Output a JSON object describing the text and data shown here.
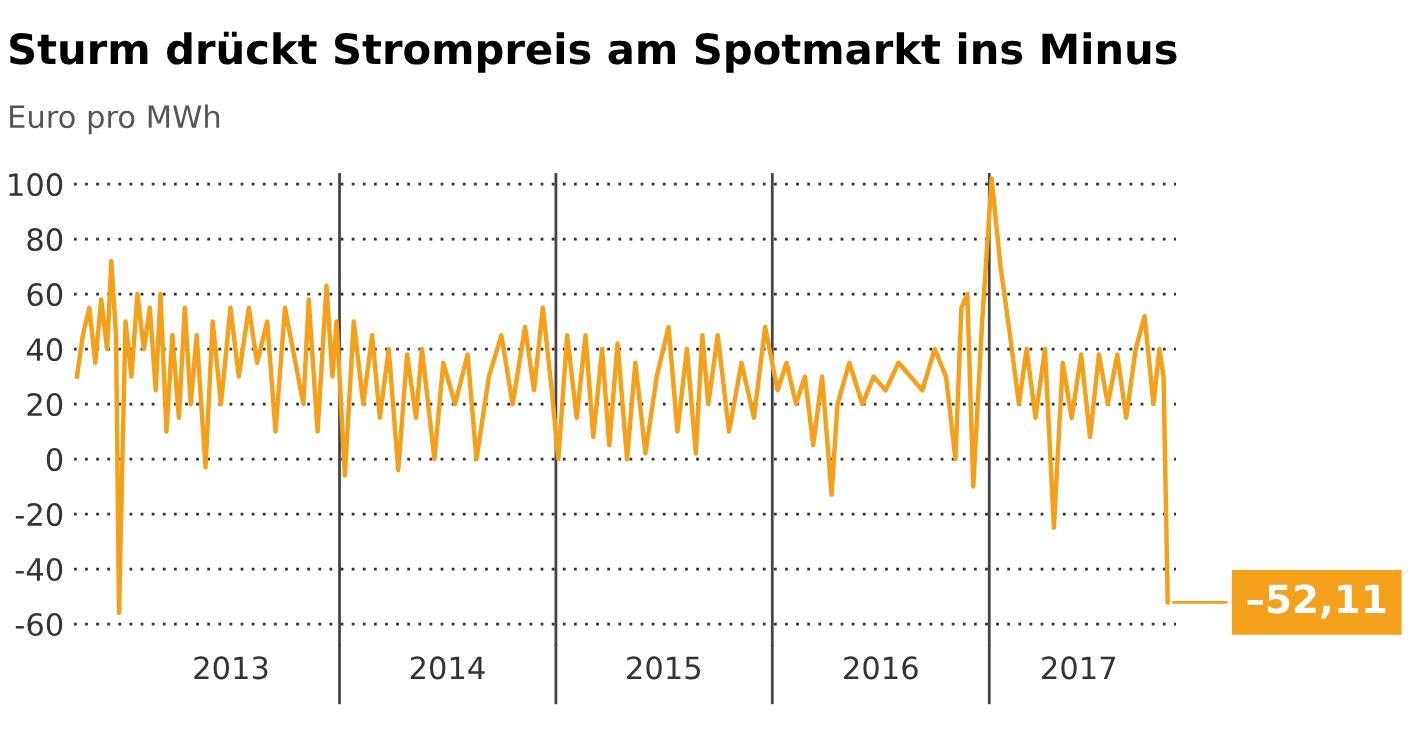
{
  "chart_data": {
    "type": "line",
    "title": "Sturm drückt Strompreis am Spotmarkt ins Minus",
    "ylabel": "Euro pro MWh",
    "series": [
      {
        "color": "#f5a01a",
        "x": [
          "2012-10-15",
          "2012-10-25",
          "2012-11-05",
          "2012-11-15",
          "2012-11-25",
          "2012-12-05",
          "2012-12-12",
          "2012-12-20",
          "2012-12-25",
          "2013-01-05",
          "2013-01-15",
          "2013-01-25",
          "2013-02-05",
          "2013-02-15",
          "2013-02-25",
          "2013-03-05",
          "2013-03-15",
          "2013-03-25",
          "2013-04-05",
          "2013-04-15",
          "2013-04-25",
          "2013-05-05",
          "2013-05-20",
          "2013-06-01",
          "2013-06-15",
          "2013-07-01",
          "2013-07-15",
          "2013-08-01",
          "2013-08-15",
          "2013-09-01",
          "2013-09-15",
          "2013-10-01",
          "2013-11-01",
          "2013-11-10",
          "2013-11-25",
          "2013-12-10",
          "2013-12-20",
          "2013-12-27",
          "2014-01-10",
          "2014-01-25",
          "2014-02-10",
          "2014-02-25",
          "2014-03-10",
          "2014-03-25",
          "2014-04-10",
          "2014-04-25",
          "2014-05-10",
          "2014-05-20",
          "2014-06-10",
          "2014-06-25",
          "2014-07-15",
          "2014-08-05",
          "2014-08-20",
          "2014-09-10",
          "2014-10-01",
          "2014-10-20",
          "2014-11-10",
          "2014-11-25",
          "2014-12-10",
          "2014-12-25",
          "2015-01-05",
          "2015-01-20",
          "2015-02-05",
          "2015-02-20",
          "2015-03-05",
          "2015-03-20",
          "2015-04-01",
          "2015-04-15",
          "2015-05-01",
          "2015-05-15",
          "2015-06-01",
          "2015-06-20",
          "2015-07-10",
          "2015-07-25",
          "2015-08-10",
          "2015-08-25",
          "2015-09-05",
          "2015-09-15",
          "2015-10-01",
          "2015-10-20",
          "2015-11-10",
          "2015-12-01",
          "2015-12-20",
          "2016-01-10",
          "2016-01-25",
          "2016-02-10",
          "2016-02-25",
          "2016-03-10",
          "2016-03-25",
          "2016-04-10",
          "2016-04-20",
          "2016-05-10",
          "2016-06-01",
          "2016-06-20",
          "2016-07-10",
          "2016-08-01",
          "2016-09-10",
          "2016-10-01",
          "2016-10-20",
          "2016-11-05",
          "2016-11-15",
          "2016-11-25",
          "2016-12-05",
          "2016-12-20",
          "2017-01-05",
          "2017-01-20",
          "2017-02-05",
          "2017-02-20",
          "2017-03-05",
          "2017-03-20",
          "2017-04-05",
          "2017-04-20",
          "2017-05-05",
          "2017-05-20",
          "2017-06-05",
          "2017-06-20",
          "2017-07-05",
          "2017-07-20",
          "2017-08-05",
          "2017-08-20",
          "2017-09-05",
          "2017-09-20",
          "2017-10-05",
          "2017-10-15",
          "2017-10-22",
          "2017-10-29"
        ],
        "values": [
          30,
          45,
          55,
          35,
          58,
          40,
          72,
          45,
          -56,
          50,
          30,
          60,
          40,
          55,
          25,
          60,
          10,
          45,
          15,
          55,
          20,
          45,
          -3,
          50,
          20,
          55,
          30,
          55,
          35,
          50,
          10,
          55,
          20,
          58,
          10,
          63,
          30,
          50,
          -6,
          50,
          20,
          45,
          15,
          40,
          -4,
          38,
          15,
          40,
          0,
          35,
          20,
          38,
          0,
          30,
          45,
          20,
          48,
          25,
          55,
          25,
          0,
          45,
          15,
          45,
          8,
          40,
          5,
          42,
          0,
          35,
          2,
          30,
          48,
          10,
          40,
          2,
          45,
          20,
          45,
          10,
          35,
          15,
          48,
          25,
          35,
          20,
          30,
          5,
          30,
          -13,
          20,
          35,
          20,
          30,
          25,
          35,
          25,
          40,
          30,
          0,
          55,
          60,
          -10,
          50,
          102,
          70,
          45,
          20,
          40,
          15,
          40,
          -25,
          35,
          15,
          38,
          8,
          38,
          20,
          38,
          15,
          40,
          52,
          20,
          40,
          30,
          -52.11
        ]
      }
    ],
    "ylim": [
      -68,
      104
    ],
    "yticks": [
      -60,
      -40,
      -20,
      0,
      20,
      40,
      60,
      80,
      100
    ],
    "xlim": [
      "2012-10-10",
      "2017-11-12"
    ],
    "xticks": [
      {
        "value": "2013-07-02",
        "label": "2013"
      },
      {
        "value": "2014-07-02",
        "label": "2014"
      },
      {
        "value": "2015-07-02",
        "label": "2015"
      },
      {
        "value": "2016-07-02",
        "label": "2016"
      },
      {
        "value": "2017-06-01",
        "label": "2017"
      }
    ],
    "ref_lines": [
      {
        "axis": "x",
        "value": "2014-01-01",
        "color": "#444444"
      },
      {
        "axis": "x",
        "value": "2015-01-01",
        "color": "#444444"
      },
      {
        "axis": "x",
        "value": "2016-01-01",
        "color": "#444444"
      },
      {
        "axis": "x",
        "value": "2017-01-01",
        "color": "#444444"
      }
    ],
    "grid": "y",
    "legend": false,
    "annotations": [
      {
        "text": "–52,11",
        "x": "2017-10-29",
        "y": -52.11
      }
    ]
  }
}
